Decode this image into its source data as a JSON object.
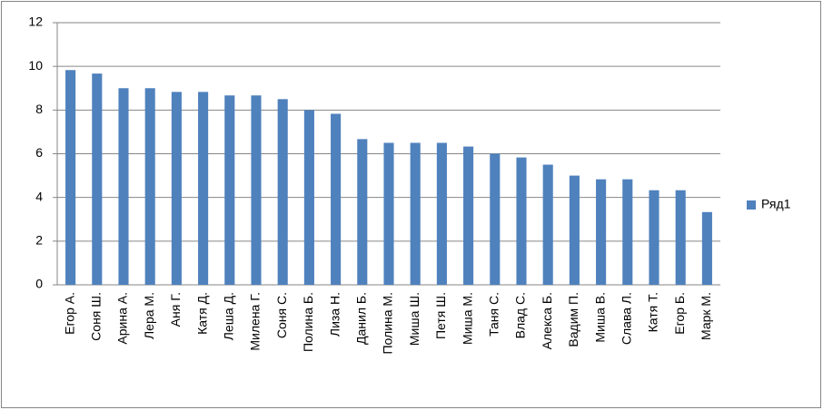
{
  "chart_data": {
    "type": "bar",
    "categories": [
      "Егор А.",
      "Соня Ш.",
      "Арина А.",
      "Лера М.",
      "Аня Г.",
      "Катя Д.",
      "Леша Д.",
      "Милена Г.",
      "Соня С.",
      "Полина Б.",
      "Лиза Н.",
      "Данил Б.",
      "Полина М.",
      "Миша Ш.",
      "Петя Ш.",
      "Миша М.",
      "Таня С.",
      "Влад С.",
      "Алекса Б.",
      "Вадим П.",
      "Миша В.",
      "Слава Л.",
      "Катя Т.",
      "Егор Б.",
      "Марк М."
    ],
    "series": [
      {
        "name": "Ряд1",
        "color": "#4f81bd",
        "values": [
          9.83,
          9.67,
          9,
          9,
          8.83,
          8.83,
          8.67,
          8.67,
          8.5,
          8,
          7.83,
          6.67,
          6.5,
          6.5,
          6.5,
          6.33,
          6,
          5.83,
          5.5,
          5,
          4.83,
          4.83,
          4.33,
          4.33,
          3.33
        ]
      }
    ],
    "ylim": [
      0,
      12
    ],
    "yticks": [
      0,
      2,
      4,
      6,
      8,
      10,
      12
    ],
    "grid": true,
    "legend": "right"
  }
}
